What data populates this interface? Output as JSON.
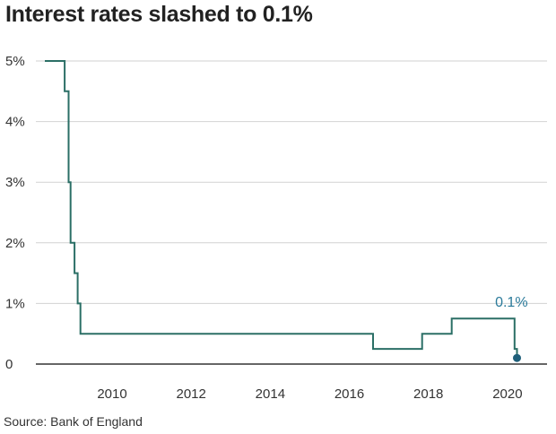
{
  "chart_data": {
    "type": "line",
    "title": "Interest rates slashed to 0.1%",
    "source": "Source: Bank of England",
    "xlim": [
      2007.8,
      2021.0
    ],
    "ylim": [
      0,
      5
    ],
    "y_ticks": [
      {
        "value": 0,
        "label": "0"
      },
      {
        "value": 1,
        "label": "1%"
      },
      {
        "value": 2,
        "label": "2%"
      },
      {
        "value": 3,
        "label": "3%"
      },
      {
        "value": 4,
        "label": "4%"
      },
      {
        "value": 5,
        "label": "5%"
      }
    ],
    "x_ticks": [
      {
        "value": 2010,
        "label": "2010"
      },
      {
        "value": 2012,
        "label": "2012"
      },
      {
        "value": 2014,
        "label": "2014"
      },
      {
        "value": 2016,
        "label": "2016"
      },
      {
        "value": 2018,
        "label": "2018"
      },
      {
        "value": 2020,
        "label": "2020"
      }
    ],
    "grid": true,
    "series": [
      {
        "color": "#2b6f66",
        "step": true,
        "points": [
          [
            2008.3,
            5.0
          ],
          [
            2008.8,
            4.5
          ],
          [
            2008.9,
            3.0
          ],
          [
            2008.95,
            2.0
          ],
          [
            2009.05,
            1.5
          ],
          [
            2009.13,
            1.0
          ],
          [
            2009.2,
            0.5
          ],
          [
            2016.6,
            0.25
          ],
          [
            2017.84,
            0.5
          ],
          [
            2018.59,
            0.75
          ],
          [
            2020.18,
            0.25
          ],
          [
            2020.24,
            0.1
          ]
        ]
      }
    ],
    "end_marker": {
      "x": 2020.24,
      "y": 0.1,
      "color": "#1f5f7a"
    },
    "annotation": {
      "text": "0.1%",
      "x": 2020.1,
      "y": 0.95,
      "color": "#2a7a9a"
    }
  }
}
